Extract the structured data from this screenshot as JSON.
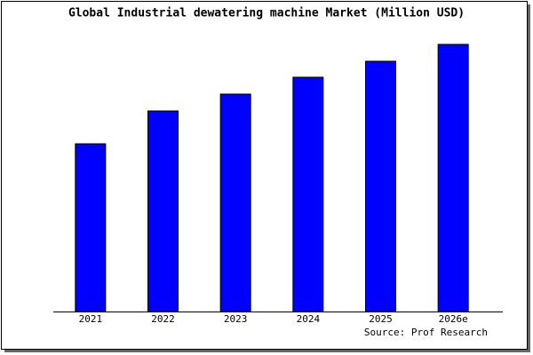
{
  "chart_data": {
    "type": "bar",
    "title": "Global Industrial dewatering machine Market (Million USD)",
    "categories": [
      "2021",
      "2022",
      "2023",
      "2024",
      "2025",
      "2026e"
    ],
    "values": [
      189,
      226,
      245,
      264,
      282,
      301
    ],
    "color": "#0000ff",
    "ylim": [
      0,
      306
    ],
    "source": "Source: Prof Research"
  }
}
